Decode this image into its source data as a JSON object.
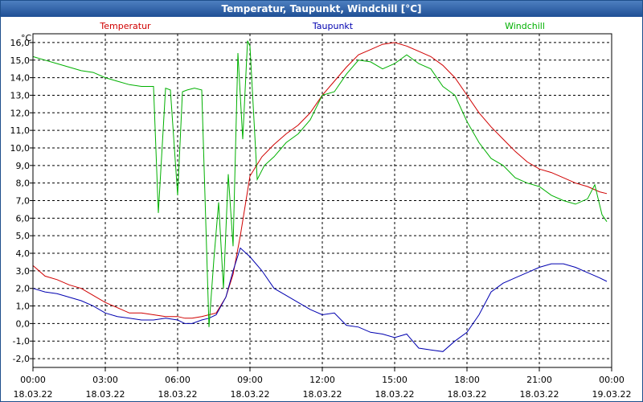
{
  "window": {
    "title": "Temperatur, Taupunkt, Windchill [°C]"
  },
  "colors": {
    "temperatur": "#d00000",
    "taupunkt": "#0000b0",
    "windchill": "#00b000",
    "grid": "#000000"
  },
  "chart_data": {
    "type": "line",
    "title": "Temperatur, Taupunkt, Windchill [°C]",
    "ylabel": "°C",
    "xlabel": "",
    "ylim": [
      -2.5,
      16.5
    ],
    "xlim": [
      0,
      24
    ],
    "grid": true,
    "y_ticks": [
      "16,0",
      "15,0",
      "14,0",
      "13,0",
      "12,0",
      "11,0",
      "10,0",
      "9,0",
      "8,0",
      "7,0",
      "6,0",
      "5,0",
      "4,0",
      "3,0",
      "2,0",
      "1,0",
      "0,0",
      "-1,0",
      "-2,0"
    ],
    "x_ticks": [
      {
        "time": "00:00",
        "date": "18.03.22"
      },
      {
        "time": "03:00",
        "date": "18.03.22"
      },
      {
        "time": "06:00",
        "date": "18.03.22"
      },
      {
        "time": "09:00",
        "date": "18.03.22"
      },
      {
        "time": "12:00",
        "date": "18.03.22"
      },
      {
        "time": "15:00",
        "date": "18.03.22"
      },
      {
        "time": "18:00",
        "date": "18.03.22"
      },
      {
        "time": "21:00",
        "date": "18.03.22"
      },
      {
        "time": "00:00",
        "date": "19.03.22"
      }
    ],
    "series": [
      {
        "name": "Temperatur",
        "x": [
          0,
          0.5,
          1,
          1.5,
          2,
          2.5,
          3,
          3.5,
          4,
          4.5,
          5,
          5.5,
          6,
          6.3,
          6.6,
          7,
          7.3,
          7.6,
          8,
          8.3,
          8.6,
          9,
          9.5,
          10,
          10.5,
          11,
          11.5,
          12,
          12.5,
          13,
          13.5,
          14,
          14.5,
          15,
          15.5,
          16,
          16.5,
          17,
          17.5,
          18,
          18.5,
          19,
          19.5,
          20,
          20.5,
          21,
          21.5,
          22,
          22.5,
          23,
          23.5,
          23.8
        ],
        "values": [
          3.3,
          2.7,
          2.5,
          2.2,
          2.0,
          1.6,
          1.2,
          0.9,
          0.6,
          0.6,
          0.5,
          0.4,
          0.4,
          0.3,
          0.3,
          0.4,
          0.5,
          0.6,
          1.5,
          2.8,
          5.0,
          8.4,
          9.5,
          10.2,
          10.8,
          11.3,
          12.0,
          13.0,
          13.8,
          14.6,
          15.3,
          15.6,
          15.9,
          16.0,
          15.8,
          15.5,
          15.2,
          14.7,
          14.0,
          13.0,
          12.0,
          11.2,
          10.5,
          9.8,
          9.2,
          8.8,
          8.6,
          8.3,
          8.0,
          7.8,
          7.5,
          7.4
        ]
      },
      {
        "name": "Taupunkt",
        "x": [
          0,
          0.5,
          1,
          1.5,
          2,
          2.5,
          3,
          3.5,
          4,
          4.5,
          5,
          5.5,
          6,
          6.3,
          6.6,
          7,
          7.3,
          7.6,
          8,
          8.3,
          8.6,
          9,
          9.5,
          10,
          10.5,
          11,
          11.5,
          12,
          12.5,
          13,
          13.5,
          14,
          14.5,
          15,
          15.5,
          16,
          16.5,
          17,
          17.5,
          18,
          18.5,
          19,
          19.5,
          20,
          20.5,
          21,
          21.5,
          22,
          22.5,
          23,
          23.5,
          23.8
        ],
        "values": [
          2.0,
          1.8,
          1.7,
          1.5,
          1.3,
          1.0,
          0.6,
          0.4,
          0.3,
          0.2,
          0.2,
          0.3,
          0.2,
          0.0,
          0.0,
          0.2,
          0.3,
          0.5,
          1.5,
          3.0,
          4.3,
          3.8,
          3.0,
          2.0,
          1.6,
          1.2,
          0.8,
          0.5,
          0.6,
          -0.1,
          -0.2,
          -0.5,
          -0.6,
          -0.8,
          -0.6,
          -1.4,
          -1.5,
          -1.6,
          -1.0,
          -0.5,
          0.5,
          1.8,
          2.3,
          2.6,
          2.9,
          3.2,
          3.4,
          3.4,
          3.2,
          2.9,
          2.6,
          2.4
        ]
      },
      {
        "name": "Windchill",
        "x": [
          0,
          0.5,
          1,
          1.5,
          2,
          2.5,
          3,
          3.5,
          4,
          4.5,
          5,
          5.2,
          5.5,
          5.7,
          6,
          6.2,
          6.4,
          6.7,
          7,
          7.3,
          7.5,
          7.7,
          7.9,
          8.1,
          8.3,
          8.5,
          8.7,
          8.9,
          9,
          9.3,
          9.6,
          10,
          10.5,
          11,
          11.5,
          12,
          12.5,
          13,
          13.5,
          14,
          14.5,
          15,
          15.5,
          16,
          16.5,
          17,
          17.5,
          18,
          18.5,
          19,
          19.5,
          20,
          20.5,
          21,
          21.5,
          22,
          22.5,
          23,
          23.3,
          23.6,
          23.8
        ],
        "values": [
          15.2,
          15.0,
          14.8,
          14.6,
          14.4,
          14.3,
          14.0,
          13.8,
          13.6,
          13.5,
          13.5,
          6.3,
          13.4,
          13.3,
          7.3,
          13.2,
          13.3,
          13.4,
          13.3,
          -0.2,
          3.6,
          6.9,
          2.0,
          8.5,
          4.4,
          15.4,
          10.5,
          16.1,
          15.8,
          8.2,
          9.0,
          9.5,
          10.3,
          10.8,
          11.6,
          13.0,
          13.2,
          14.2,
          15.0,
          14.9,
          14.5,
          14.8,
          15.3,
          14.8,
          14.5,
          13.5,
          13.0,
          11.5,
          10.3,
          9.4,
          9.0,
          8.3,
          8.0,
          7.8,
          7.3,
          7.0,
          6.8,
          7.1,
          7.9,
          6.2,
          5.8
        ]
      }
    ]
  }
}
